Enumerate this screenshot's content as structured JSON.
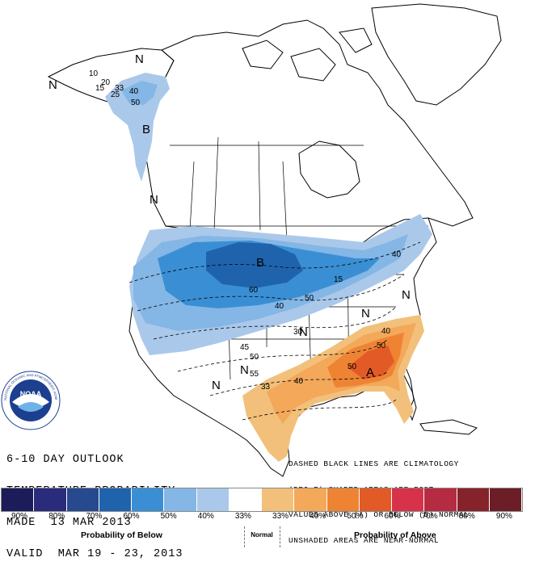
{
  "title": {
    "line1": "6-10 DAY OUTLOOK",
    "line2": "TEMPERATURE PROBABILITY",
    "line3": "MADE  13 MAR 2013",
    "line4": "VALID  MAR 19 - 23, 2013"
  },
  "note": {
    "line1": "DASHED BLACK LINES ARE CLIMATOLOGY",
    "line2": "(DEG F) SHADED AREAS ARE FCST",
    "line3": "VALUES ABOVE (A) OR BELOW (B) NORMAL",
    "line4": "UNSHADED AREAS ARE NEAR-NORMAL"
  },
  "logo": {
    "text": "NOAA",
    "ring_text": "NATIONAL OCEANIC AND ATMOSPHERIC ADMINISTRATION"
  },
  "legend": {
    "swatches": [
      {
        "label": "90%",
        "color": "#1c1c5a"
      },
      {
        "label": "80%",
        "color": "#2a2b7a"
      },
      {
        "label": "70%",
        "color": "#27498d"
      },
      {
        "label": "60%",
        "color": "#1f63ad"
      },
      {
        "label": "50%",
        "color": "#3a8fd4"
      },
      {
        "label": "40%",
        "color": "#84b6e6"
      },
      {
        "label": "33%",
        "color": "#aac8ea"
      },
      {
        "label": "33%",
        "color": "#ffffff"
      },
      {
        "label": "33%",
        "color": "#f2c07b"
      },
      {
        "label": "40%",
        "color": "#f3a85a"
      },
      {
        "label": "50%",
        "color": "#ee8433"
      },
      {
        "label": "60%",
        "color": "#e25a26"
      },
      {
        "label": "70%",
        "color": "#d8324a"
      },
      {
        "label": "80%",
        "color": "#b52b41"
      },
      {
        "label": "90%",
        "color": "#862229"
      },
      {
        "label": "90%",
        "color": "#6b1e26"
      }
    ],
    "labels": [
      "90%",
      "80%",
      "70%",
      "60%",
      "50%",
      "40%",
      "33%",
      "33%",
      "40%",
      "50%",
      "60%",
      "70%",
      "80%",
      "90%"
    ],
    "below_caption": "Probability of Below",
    "normal_caption": "Normal",
    "above_caption": "Probability of Above"
  },
  "map": {
    "markers": {
      "b_west": "B",
      "b_central": "B",
      "a_southeast": "A",
      "n_alaska_left": "N",
      "n_alaska_top": "N",
      "n_pacific": "N",
      "n_ohio": "N",
      "n_kansas": "N",
      "n_texas": "N",
      "n_southwest": "N",
      "n_northeast": "N"
    },
    "contours": {
      "c10": "10",
      "c15a": "15",
      "c20": "20",
      "c25": "25",
      "c33a": "33",
      "c40a": "40",
      "c50a": "50",
      "c60": "60",
      "c50b": "50",
      "c40b": "40",
      "c40c": "40",
      "c15b": "15",
      "c30": "30",
      "c45": "45",
      "c50c": "50",
      "c55": "55",
      "c40d": "40",
      "c50d": "50",
      "c50e": "50",
      "c40e": "40",
      "c33b": "33"
    }
  }
}
